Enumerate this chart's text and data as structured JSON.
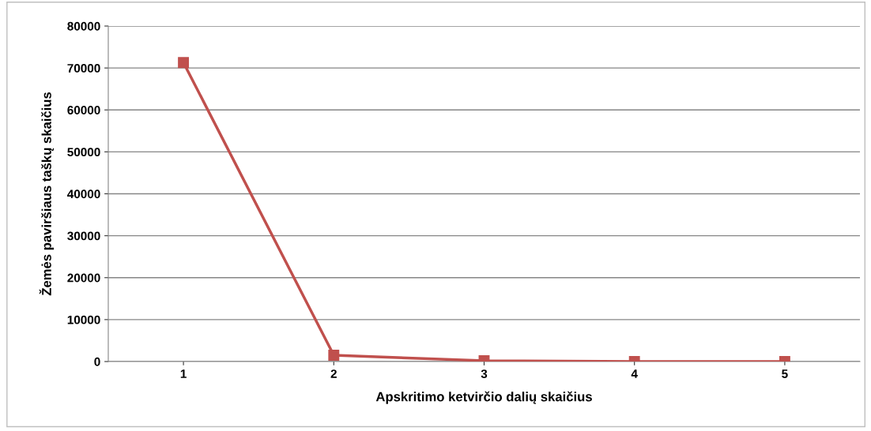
{
  "chart_data": {
    "type": "line",
    "xlabel": "Apskritimo ketvirčio dalių skaičius",
    "ylabel": "Žemės paviršiaus taškų skaičius",
    "categories": [
      "1",
      "2",
      "3",
      "4",
      "5"
    ],
    "series": [
      {
        "color": "#c0504d",
        "values": [
          71300,
          1500,
          200,
          0,
          0
        ]
      }
    ],
    "ylim": [
      0,
      80000
    ],
    "yticks": [
      0,
      10000,
      20000,
      30000,
      40000,
      50000,
      60000,
      70000,
      80000
    ],
    "grid": "y",
    "marker": "square",
    "line_style": "solid"
  }
}
